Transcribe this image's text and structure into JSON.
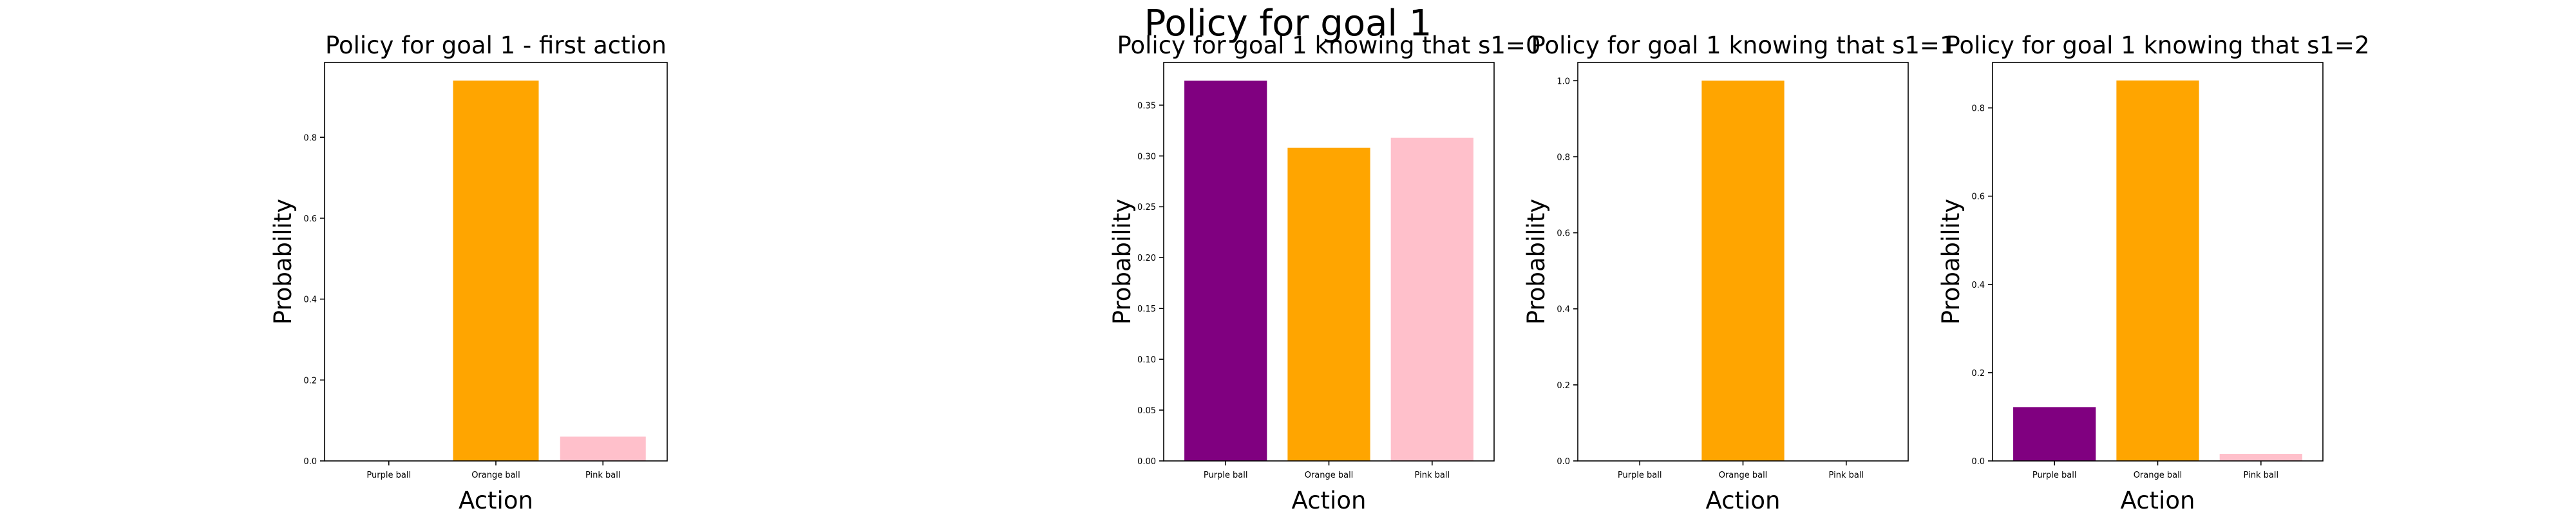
{
  "suptitle": "Policy for goal 1",
  "chart_data": [
    {
      "type": "bar",
      "title": "Policy for goal 1 - first action",
      "xlabel": "Action",
      "ylabel": "Probability",
      "categories": [
        "Purple ball",
        "Orange ball",
        "Pink ball"
      ],
      "values": [
        0.0,
        0.94,
        0.06
      ],
      "colors": [
        "#800080",
        "#FFA500",
        "#FFC0CB"
      ],
      "ylim": [
        0,
        0.985
      ],
      "yticks": [
        "0.0",
        "0.2",
        "0.4",
        "0.6",
        "0.8"
      ],
      "ytick_values": [
        0,
        0.2,
        0.4,
        0.6,
        0.8
      ],
      "grid": false
    },
    {
      "type": "bar",
      "title": "Policy for goal 1 knowing that s1=0",
      "xlabel": "Action",
      "ylabel": "Probability",
      "categories": [
        "Purple ball",
        "Orange ball",
        "Pink ball"
      ],
      "values": [
        0.374,
        0.308,
        0.318
      ],
      "colors": [
        "#800080",
        "#FFA500",
        "#FFC0CB"
      ],
      "ylim": [
        0,
        0.392
      ],
      "yticks": [
        "0.00",
        "0.05",
        "0.10",
        "0.15",
        "0.20",
        "0.25",
        "0.30",
        "0.35"
      ],
      "ytick_values": [
        0,
        0.05,
        0.1,
        0.15,
        0.2,
        0.25,
        0.3,
        0.35
      ],
      "grid": false
    },
    {
      "type": "bar",
      "title": "Policy for goal 1 knowing that s1=1",
      "xlabel": "Action",
      "ylabel": "Probability",
      "categories": [
        "Purple ball",
        "Orange ball",
        "Pink ball"
      ],
      "values": [
        0.0,
        1.0,
        0.0
      ],
      "colors": [
        "#800080",
        "#FFA500",
        "#FFC0CB"
      ],
      "ylim": [
        0,
        1.048
      ],
      "yticks": [
        "0.0",
        "0.2",
        "0.4",
        "0.6",
        "0.8",
        "1.0"
      ],
      "ytick_values": [
        0,
        0.2,
        0.4,
        0.6,
        0.8,
        1.0
      ],
      "grid": false
    },
    {
      "type": "bar",
      "title": "Policy for goal 1 knowing that s1=2",
      "xlabel": "Action",
      "ylabel": "Probability",
      "categories": [
        "Purple ball",
        "Orange ball",
        "Pink ball"
      ],
      "values": [
        0.122,
        0.862,
        0.016
      ],
      "colors": [
        "#800080",
        "#FFA500",
        "#FFC0CB"
      ],
      "ylim": [
        0,
        0.903
      ],
      "yticks": [
        "0.0",
        "0.2",
        "0.4",
        "0.6",
        "0.8"
      ],
      "ytick_values": [
        0,
        0.2,
        0.4,
        0.6,
        0.8
      ],
      "grid": false
    }
  ]
}
